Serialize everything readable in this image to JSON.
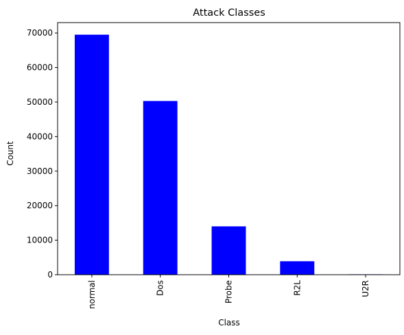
{
  "chart_data": {
    "type": "bar",
    "title": "Attack Classes",
    "xlabel": "Class",
    "ylabel": "Count",
    "categories": [
      "normal",
      "Dos",
      "Probe",
      "R2L",
      "U2R"
    ],
    "values": [
      69500,
      50300,
      14000,
      3900,
      120
    ],
    "ylim": [
      0,
      73000
    ],
    "yticks": [
      0,
      10000,
      20000,
      30000,
      40000,
      50000,
      60000,
      70000
    ],
    "bar_color": "#0000ff",
    "grid": false,
    "legend": "none"
  }
}
